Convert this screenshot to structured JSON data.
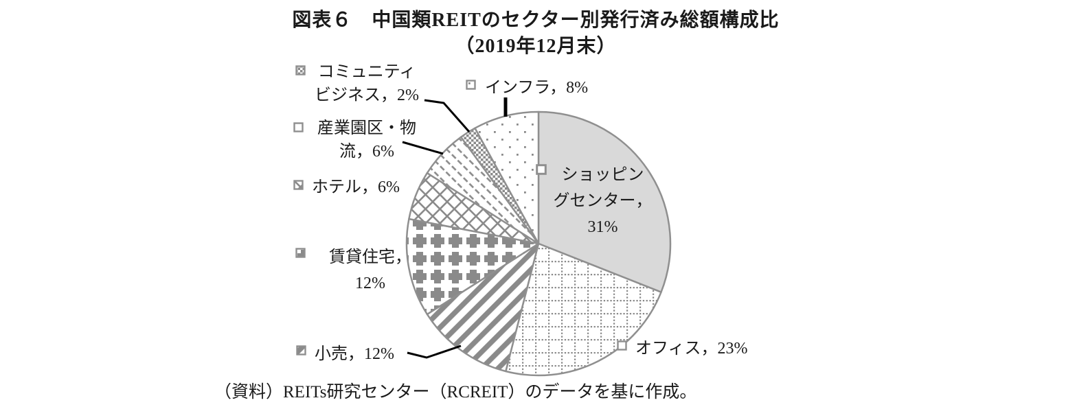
{
  "title": {
    "line1": "図表６　中国類REITのセクター別発行済み総額構成比",
    "line2": "（2019年12月末）"
  },
  "source": "（資料）REITs研究センター（RCREIT）のデータを基に作成。",
  "colors": {
    "background": "#ffffff",
    "outline": "#8f8f8f",
    "pattern_gray": "#8a8a8a",
    "shopping_fill": "#d9d9d9",
    "leader": "#000000",
    "text": "#1a1a1a"
  },
  "chart_data": {
    "type": "pie",
    "title": "図表６　中国類REITのセクター別発行済み総額構成比（2019年12月末）",
    "values_shown_as": "percent",
    "start_angle_deg": 0,
    "direction": "clockwise",
    "legend_position": "callout-labels-with-keys",
    "slices": [
      {
        "key": "shopping-center",
        "label": "ショッピングセンター",
        "value_pct": 31,
        "pattern": "solid-light-gray"
      },
      {
        "key": "office",
        "label": "オフィス",
        "value_pct": 23,
        "pattern": "dashed-grid"
      },
      {
        "key": "retail",
        "label": "小売",
        "value_pct": 12,
        "pattern": "diagonal-stripes"
      },
      {
        "key": "rental-housing",
        "label": "賃貸住宅",
        "value_pct": 12,
        "pattern": "plus-grid"
      },
      {
        "key": "hotel",
        "label": "ホテル",
        "value_pct": 6,
        "pattern": "diamond-lattice"
      },
      {
        "key": "industrial-park-logistics",
        "label": "産業園区・物流",
        "value_pct": 6,
        "pattern": "diagonal-dashes"
      },
      {
        "key": "community-business",
        "label": "コミュニティビジネス",
        "value_pct": 2,
        "pattern": "fine-checker"
      },
      {
        "key": "infrastructure",
        "label": "インフラ",
        "value_pct": 8,
        "pattern": "sparse-dots"
      }
    ]
  },
  "labels": {
    "community": {
      "line1": "コミュニティ",
      "line2": "ビジネス，2%"
    },
    "industrial": {
      "line1": "産業園区・物",
      "line2": "流，6%"
    },
    "hotel": {
      "text": "ホテル，6%"
    },
    "rental": {
      "line1": "賃貸住宅，",
      "line2": "12%"
    },
    "retail": {
      "text": "小売，12%"
    },
    "infra": {
      "text": "インフラ，8%"
    },
    "office": {
      "text": "オフィス，23%"
    },
    "shopping": {
      "line1": "ショッピン",
      "line2": "グセンター，",
      "line3": "31%"
    }
  }
}
